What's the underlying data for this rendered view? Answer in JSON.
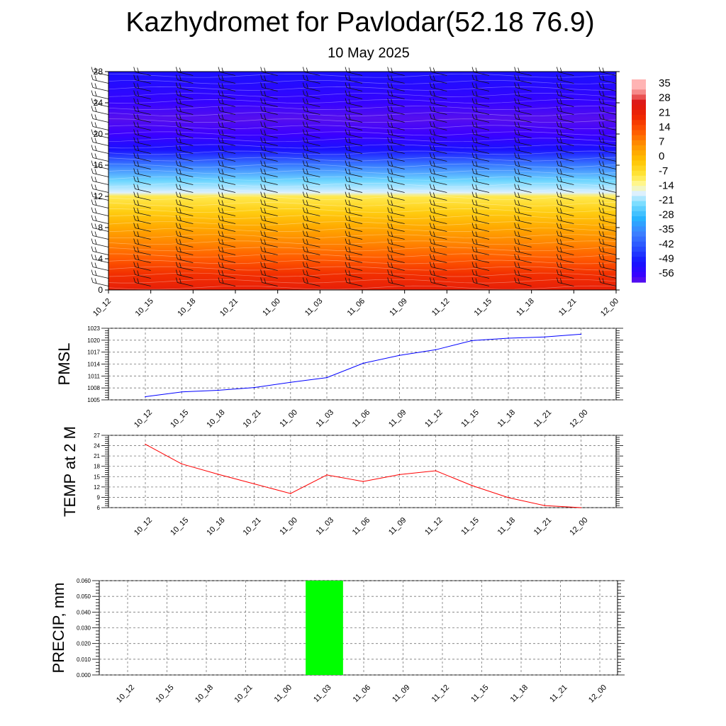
{
  "page": {
    "title": "Kazhydromet for Pavlodar(52.18 76.9)",
    "subtitle": "10 May 2025"
  },
  "times": [
    "10_12",
    "10_15",
    "10_18",
    "10_21",
    "11_00",
    "11_03",
    "11_06",
    "11_09",
    "11_12",
    "11_15",
    "11_18",
    "11_21",
    "12_00"
  ],
  "chart_data": [
    {
      "type": "heatmap",
      "title": "",
      "xlabel": "",
      "ylabel": "",
      "x": [
        "10_12",
        "10_15",
        "10_18",
        "10_21",
        "11_00",
        "11_03",
        "11_06",
        "11_09",
        "11_12",
        "11_15",
        "11_18",
        "11_21",
        "12_00"
      ],
      "ylim": [
        0,
        28
      ],
      "yticks": [
        0,
        4,
        8,
        12,
        16,
        20,
        24,
        28
      ],
      "colorbar_labels": [
        "35",
        "28",
        "21",
        "14",
        "7",
        "0",
        "-7",
        "-14",
        "-21",
        "-28",
        "-35",
        "-42",
        "-49",
        "-56"
      ],
      "levels": [
        {
          "y": 0,
          "value": 24
        },
        {
          "y": 2,
          "value": 20
        },
        {
          "y": 4,
          "value": 14
        },
        {
          "y": 6,
          "value": 9
        },
        {
          "y": 8,
          "value": 4
        },
        {
          "y": 10,
          "value": -2
        },
        {
          "y": 12,
          "value": -8
        },
        {
          "y": 12.5,
          "value": -16
        },
        {
          "y": 14,
          "value": -22
        },
        {
          "y": 16,
          "value": -36
        },
        {
          "y": 18,
          "value": -50
        },
        {
          "y": 20,
          "value": -56
        },
        {
          "y": 22,
          "value": -58
        },
        {
          "y": 24,
          "value": -55
        },
        {
          "y": 28,
          "value": -50
        }
      ],
      "wind_barbs": true,
      "grid": false
    },
    {
      "type": "line",
      "title": "",
      "xlabel": "",
      "ylabel": "PMSL",
      "x": [
        "10_12",
        "10_15",
        "10_18",
        "10_21",
        "11_00",
        "11_03",
        "11_06",
        "11_09",
        "11_12",
        "11_15",
        "11_18",
        "11_21",
        "12_00"
      ],
      "yticks": [
        1005,
        1008,
        1011,
        1014,
        1017,
        1020,
        1023
      ],
      "ylim": [
        1005,
        1023
      ],
      "series": [
        {
          "name": "",
          "color": "#0000ff",
          "values": [
            1005.8,
            1007.0,
            1007.4,
            1008.1,
            1009.4,
            1010.6,
            1014.2,
            1016.2,
            1017.6,
            1019.9,
            1020.5,
            1020.8,
            1021.5
          ]
        }
      ],
      "grid": true
    },
    {
      "type": "line",
      "title": "",
      "xlabel": "",
      "ylabel": "TEMP at 2 M",
      "x": [
        "10_12",
        "10_15",
        "10_18",
        "10_21",
        "11_00",
        "11_03",
        "11_06",
        "11_09",
        "11_12",
        "11_15",
        "11_18",
        "11_21",
        "12_00"
      ],
      "yticks": [
        6,
        9,
        12,
        15,
        18,
        21,
        24,
        27
      ],
      "ylim": [
        6,
        27
      ],
      "series": [
        {
          "name": "",
          "color": "#ff0000",
          "values": [
            24.4,
            18.7,
            15.7,
            12.9,
            10.1,
            15.5,
            13.6,
            15.6,
            16.7,
            12.4,
            8.9,
            6.6,
            6.0
          ]
        }
      ],
      "grid": true
    },
    {
      "type": "bar",
      "title": "",
      "xlabel": "",
      "ylabel": "PRECIP, mm",
      "categories": [
        "10_12",
        "10_15",
        "10_18",
        "10_21",
        "11_00",
        "11_03",
        "11_06",
        "11_09",
        "11_12",
        "11_15",
        "11_18",
        "11_21",
        "12_00"
      ],
      "yticks": [
        "0.000",
        "0.010",
        "0.020",
        "0.030",
        "0.040",
        "0.050",
        "0.060"
      ],
      "ylim": [
        0,
        0.06
      ],
      "values": [
        0,
        0,
        0,
        0,
        0,
        0.06,
        0,
        0,
        0,
        0,
        0,
        0,
        0
      ],
      "bar_color": "#00ff00",
      "grid": true
    }
  ]
}
